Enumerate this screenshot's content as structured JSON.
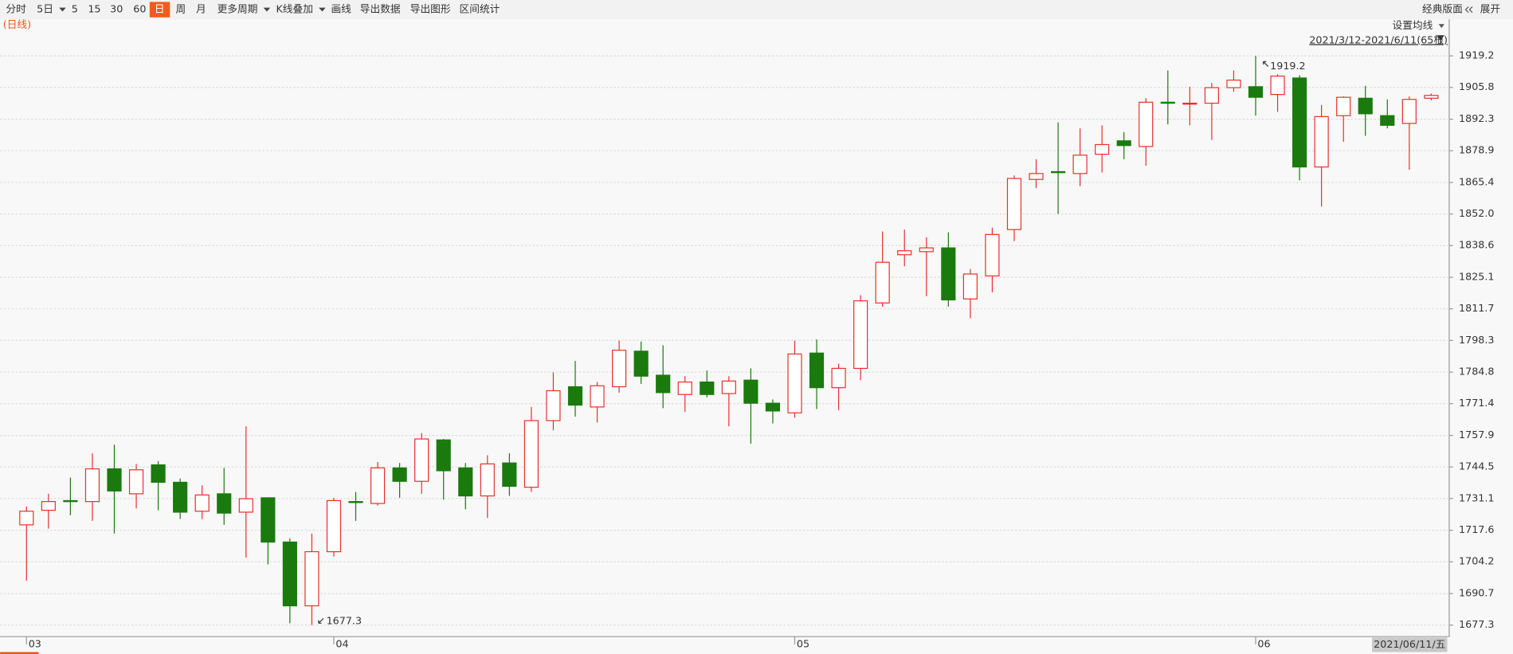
{
  "toolbar": {
    "items": [
      {
        "text": "分时"
      },
      {
        "text": "5日",
        "dropdown": true
      },
      {
        "text": "5"
      },
      {
        "text": "15"
      },
      {
        "text": "30"
      },
      {
        "text": "60"
      },
      {
        "text": "日",
        "active": true
      },
      {
        "text": "周"
      },
      {
        "text": "月"
      },
      {
        "text": "更多周期",
        "dropdown": true
      },
      {
        "text": "K线叠加",
        "dropdown": true
      },
      {
        "text": "画线"
      },
      {
        "text": "导出数据"
      },
      {
        "text": "导出图形"
      },
      {
        "text": "区间统计"
      }
    ],
    "right": [
      "经典版面",
      "展开"
    ]
  },
  "chart_data": {
    "type": "candlestick",
    "period_label": "(日线)",
    "ma_setting": "设置均线",
    "range_label": "2021/3/12-2021/6/11(65根)",
    "cursor_date": "2021/06/11/五",
    "max_label": "1919.2",
    "min_label": "1677.3",
    "categories": [
      "03",
      null,
      null,
      null,
      null,
      null,
      null,
      null,
      null,
      null,
      null,
      null,
      null,
      null,
      "04",
      null,
      null,
      null,
      null,
      null,
      null,
      null,
      null,
      null,
      null,
      null,
      null,
      null,
      null,
      null,
      null,
      null,
      null,
      null,
      null,
      "05",
      null,
      null,
      null,
      null,
      null,
      null,
      null,
      null,
      null,
      null,
      null,
      null,
      null,
      null,
      null,
      null,
      null,
      null,
      null,
      null,
      "06",
      null,
      null,
      null,
      null,
      null,
      null,
      null,
      null
    ],
    "open": [
      1719.9,
      1726.1,
      1730.2,
      1729.8,
      1743.7,
      1733.1,
      1745.4,
      1738.0,
      1725.7,
      1733.1,
      1725.3,
      1731.4,
      1712.6,
      1685.5,
      1708.5,
      1729.8,
      1729.0,
      1744.1,
      1738.4,
      1756.0,
      1744.1,
      1732.2,
      1746.2,
      1735.9,
      1764.2,
      1778.6,
      1770.0,
      1778.6,
      1793.7,
      1783.5,
      1775.3,
      1780.6,
      1775.7,
      1781.4,
      1771.6,
      1767.5,
      1792.9,
      1778.2,
      1786.4,
      1814.2,
      1834.7,
      1836.0,
      1837.6,
      1815.9,
      1825.7,
      1845.4,
      1866.7,
      1870.0,
      1869.2,
      1877.4,
      1883.1,
      1880.7,
      1899.5,
      1898.7,
      1899.1,
      1905.7,
      1906.1,
      1902.8,
      1909.8,
      1872.0,
      1893.8,
      1901.2,
      1893.8,
      1890.5,
      1901.2
    ],
    "high": [
      1727.7,
      1733.1,
      1740.0,
      1750.3,
      1754.0,
      1745.8,
      1747.0,
      1739.6,
      1736.7,
      1744.1,
      1761.8,
      1731.4,
      1714.2,
      1716.2,
      1731.4,
      1733.9,
      1746.6,
      1746.2,
      1758.9,
      1756.4,
      1746.2,
      1749.5,
      1750.3,
      1770.0,
      1784.7,
      1789.6,
      1780.6,
      1798.2,
      1797.8,
      1796.2,
      1783.1,
      1785.5,
      1783.1,
      1786.4,
      1773.2,
      1798.2,
      1798.7,
      1788.4,
      1817.5,
      1844.6,
      1845.4,
      1842.1,
      1844.2,
      1828.6,
      1846.2,
      1868.4,
      1875.3,
      1890.9,
      1888.4,
      1889.7,
      1886.8,
      1901.2,
      1913.0,
      1906.1,
      1907.7,
      1913.0,
      1919.2,
      1911.4,
      1911.0,
      1898.3,
      1902.0,
      1906.5,
      1900.7,
      1902.0,
      1903.2
    ],
    "low": [
      1696.2,
      1718.3,
      1724.0,
      1721.6,
      1716.2,
      1726.9,
      1726.1,
      1722.4,
      1722.4,
      1719.9,
      1706.0,
      1703.1,
      1678.1,
      1677.3,
      1706.4,
      1721.6,
      1728.1,
      1731.4,
      1733.1,
      1730.6,
      1726.5,
      1722.8,
      1732.2,
      1733.9,
      1760.1,
      1765.9,
      1763.4,
      1776.1,
      1779.8,
      1769.5,
      1767.9,
      1774.1,
      1761.8,
      1754.4,
      1763.0,
      1765.4,
      1769.1,
      1768.7,
      1781.4,
      1812.6,
      1829.8,
      1817.1,
      1812.6,
      1807.7,
      1818.7,
      1840.5,
      1863.0,
      1852.0,
      1863.8,
      1869.6,
      1875.3,
      1872.5,
      1890.1,
      1889.7,
      1883.5,
      1904.0,
      1893.8,
      1895.4,
      1866.3,
      1855.2,
      1882.7,
      1885.2,
      1888.4,
      1870.8,
      1900.3
    ],
    "close": [
      1725.7,
      1729.8,
      1729.8,
      1743.7,
      1734.3,
      1743.3,
      1738.0,
      1725.3,
      1732.6,
      1724.9,
      1731.0,
      1712.6,
      1685.5,
      1708.5,
      1730.2,
      1729.4,
      1744.1,
      1738.4,
      1756.4,
      1742.9,
      1732.2,
      1745.8,
      1736.3,
      1764.2,
      1776.9,
      1770.8,
      1779.0,
      1794.1,
      1783.1,
      1776.1,
      1780.6,
      1775.3,
      1781.0,
      1771.6,
      1768.3,
      1792.5,
      1778.2,
      1786.4,
      1815.1,
      1831.5,
      1836.4,
      1837.6,
      1815.5,
      1826.5,
      1843.3,
      1867.1,
      1869.2,
      1869.6,
      1877.0,
      1881.5,
      1881.1,
      1899.5,
      1899.1,
      1899.1,
      1905.7,
      1908.9,
      1901.6,
      1910.6,
      1872.0,
      1893.4,
      1901.6,
      1894.6,
      1889.7,
      1900.7,
      1902.4
    ],
    "up_color": "#e8312f",
    "down_color": "#1a7a0e",
    "ylim": [
      1672.4,
      1924.5
    ],
    "yticks": [
      1677.3,
      1690.7,
      1704.2,
      1717.6,
      1731.1,
      1744.5,
      1757.9,
      1771.4,
      1784.8,
      1798.3,
      1811.7,
      1825.1,
      1838.6,
      {
        "value": 1852,
        "label": "1852.0"
      },
      1865.4,
      1878.9,
      1892.3,
      1905.8,
      1919.2
    ],
    "grid": true
  }
}
